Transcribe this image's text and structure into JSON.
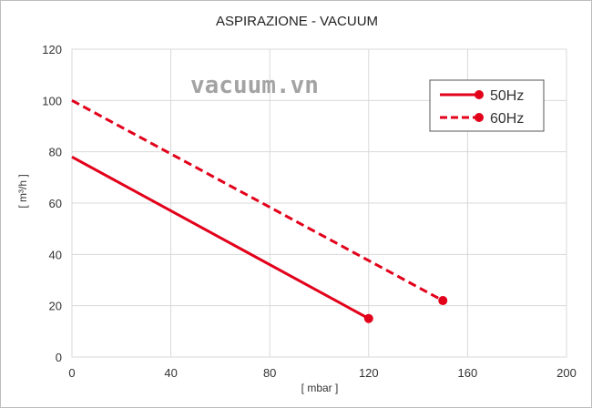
{
  "chart_data": {
    "type": "line",
    "title": "ASPIRAZIONE - VACUUM",
    "xlabel": "[ mbar ]",
    "ylabel": "[ m³/h ]",
    "xlim": [
      0,
      200
    ],
    "ylim": [
      0,
      120
    ],
    "x_ticks": [
      "0",
      "40",
      "80",
      "120",
      "160",
      "200"
    ],
    "y_ticks": [
      "0",
      "20",
      "40",
      "60",
      "80",
      "100",
      "120"
    ],
    "grid": "vertical and horizontal",
    "legend_position": "top-right",
    "watermark": "vacuum.vn",
    "series": [
      {
        "name": "50Hz",
        "style": "solid",
        "color": "#e2001a",
        "points": [
          [
            0,
            78
          ],
          [
            120,
            15
          ]
        ],
        "end_marker": true
      },
      {
        "name": "60Hz",
        "style": "dashed",
        "color": "#e2001a",
        "points": [
          [
            0,
            100
          ],
          [
            150,
            22
          ]
        ],
        "end_marker": true
      }
    ]
  }
}
